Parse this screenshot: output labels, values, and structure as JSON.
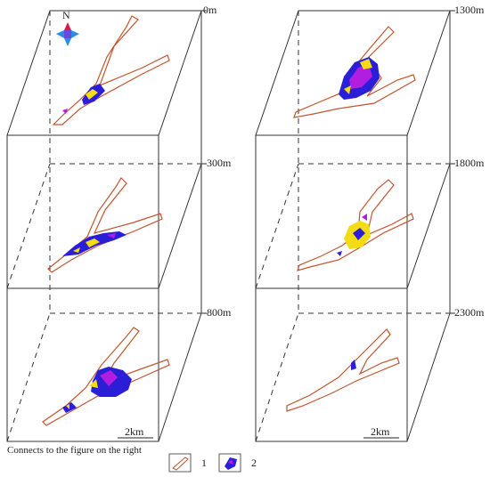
{
  "north": "N",
  "depths_left": [
    "0m",
    "-300m",
    "-800m"
  ],
  "depths_right": [
    "-1300m",
    "-1800m",
    "-2300m"
  ],
  "scale_left": "2km",
  "scale_right": "2km",
  "note": "Connects to the figure on the right",
  "legend": [
    {
      "label": "1",
      "symbol": "fault-trace-outline"
    },
    {
      "label": "2",
      "symbol": "ore-body-patch"
    }
  ],
  "colors": {
    "frame": "#333333",
    "outline": "#c0552f",
    "ore_blue": "#2a1fd6",
    "ore_purple": "#b21ee0",
    "ore_yellow": "#f4dc14",
    "compass_red": "#d81a4a",
    "compass_blue": "#2a8de8"
  }
}
